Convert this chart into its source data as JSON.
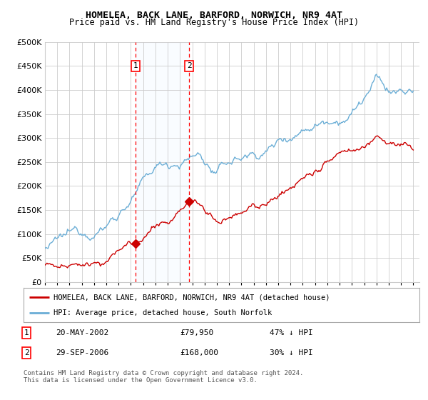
{
  "title": "HOMELEA, BACK LANE, BARFORD, NORWICH, NR9 4AT",
  "subtitle": "Price paid vs. HM Land Registry's House Price Index (HPI)",
  "ytick_values": [
    0,
    50000,
    100000,
    150000,
    200000,
    250000,
    300000,
    350000,
    400000,
    450000,
    500000
  ],
  "x_start_year": 1995,
  "x_end_year": 2025,
  "hpi_color": "#6baed6",
  "price_color": "#cc0000",
  "sale1_price": 79950,
  "sale1_year": 2002.38,
  "sale1_date_label": "20-MAY-2002",
  "sale1_hpi_pct": "47%",
  "sale2_price": 168000,
  "sale2_year": 2006.75,
  "sale2_date_label": "29-SEP-2006",
  "sale2_hpi_pct": "30%",
  "legend_red_label": "HOMELEA, BACK LANE, BARFORD, NORWICH, NR9 4AT (detached house)",
  "legend_blue_label": "HPI: Average price, detached house, South Norfolk",
  "footnote": "Contains HM Land Registry data © Crown copyright and database right 2024.\nThis data is licensed under the Open Government Licence v3.0.",
  "background_color": "#ffffff",
  "grid_color": "#cccccc",
  "shade_color": "#ddeeff"
}
